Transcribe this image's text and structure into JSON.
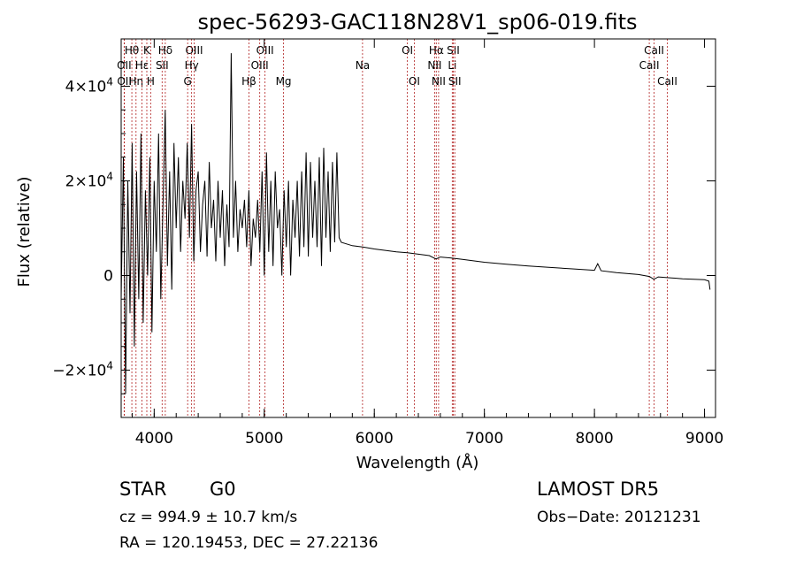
{
  "chart_data": {
    "type": "line",
    "title": "spec-56293-GAC118N28V1_sp06-019.fits",
    "xlabel": "Wavelength (Å)",
    "ylabel": "Flux (relative)",
    "xlim": [
      3700,
      9100
    ],
    "ylim": [
      -30000,
      50000
    ],
    "x_ticks": [
      4000,
      5000,
      6000,
      7000,
      8000,
      9000
    ],
    "y_ticks": [
      {
        "value": -20000,
        "base": "−2×10",
        "exp": "4"
      },
      {
        "value": 0,
        "base": "0",
        "exp": ""
      },
      {
        "value": 20000,
        "base": "2×10",
        "exp": "4"
      },
      {
        "value": 40000,
        "base": "4×10",
        "exp": "4"
      }
    ],
    "grid": false,
    "line_color": "#000000",
    "marker_color": "#b22222",
    "series": [
      {
        "x": [
          3700,
          3720,
          3740,
          3760,
          3780,
          3800,
          3820,
          3840,
          3860,
          3880,
          3900,
          3920,
          3940,
          3960,
          3980,
          4000,
          4020,
          4040,
          4060,
          4080,
          4100,
          4120,
          4140,
          4160,
          4180,
          4200,
          4220,
          4240,
          4260,
          4280,
          4300,
          4320,
          4340,
          4360,
          4380,
          4400,
          4420,
          4440,
          4460,
          4480,
          4500,
          4520,
          4540,
          4560,
          4580,
          4600,
          4620,
          4640,
          4660,
          4680,
          4700,
          4720,
          4740,
          4760,
          4780,
          4800,
          4820,
          4840,
          4860,
          4880,
          4900,
          4920,
          4940,
          4960,
          4980,
          5000,
          5020,
          5040,
          5060,
          5080,
          5100,
          5120,
          5140,
          5160,
          5180,
          5200,
          5220,
          5240,
          5260,
          5280,
          5300,
          5320,
          5340,
          5360,
          5380,
          5400,
          5420,
          5440,
          5460,
          5480,
          5500,
          5520,
          5540,
          5560,
          5580,
          5600,
          5620,
          5640,
          5660,
          5680,
          5700,
          5800,
          5900,
          6000,
          6100,
          6200,
          6300,
          6400,
          6500,
          6560,
          6600,
          6700,
          6800,
          6900,
          7000,
          7200,
          7400,
          7600,
          7800,
          8000,
          8030,
          8060,
          8200,
          8400,
          8500,
          8540,
          8580,
          8700,
          8800,
          8900,
          9000,
          9040,
          9050
        ],
        "values": [
          -5000,
          25000,
          -25000,
          20000,
          -8000,
          28000,
          -15000,
          22000,
          -5000,
          30000,
          -10000,
          18000,
          0,
          25000,
          -12000,
          20000,
          5000,
          30000,
          -5000,
          15000,
          35000,
          2000,
          22000,
          -3000,
          28000,
          10000,
          25000,
          5000,
          20000,
          12000,
          28000,
          8000,
          32000,
          3000,
          18000,
          22000,
          5000,
          15000,
          20000,
          4000,
          24000,
          10000,
          16000,
          3000,
          20000,
          8000,
          18000,
          2000,
          15000,
          6000,
          47000,
          8000,
          20000,
          5000,
          14000,
          10000,
          16000,
          6000,
          18000,
          2000,
          12000,
          8000,
          16000,
          5000,
          22000,
          0,
          26000,
          5000,
          20000,
          2000,
          22000,
          10000,
          14000,
          0,
          18000,
          6000,
          20000,
          0,
          16000,
          8000,
          20000,
          4000,
          22000,
          6000,
          26000,
          4000,
          24000,
          8000,
          20000,
          6000,
          25000,
          2000,
          27000,
          8000,
          22000,
          5000,
          24000,
          7000,
          26000,
          8000,
          7000,
          6300,
          6000,
          5600,
          5300,
          5000,
          4800,
          4500,
          4200,
          3500,
          3900,
          3700,
          3400,
          3100,
          2800,
          2400,
          2000,
          1700,
          1400,
          1100,
          2500,
          1000,
          600,
          200,
          -200,
          -800,
          -300,
          -500,
          -700,
          -800,
          -900,
          -1200,
          -3000
        ]
      }
    ],
    "lines": [
      {
        "name": "Hθ",
        "x": 3797,
        "row": 1
      },
      {
        "name": "OII",
        "x": 3727,
        "row": 2
      },
      {
        "name": "OII",
        "x": 3729,
        "row": 3
      },
      {
        "name": "Hη",
        "x": 3835,
        "row": 3
      },
      {
        "name": "K",
        "x": 3933,
        "row": 1
      },
      {
        "name": "Hε",
        "x": 3889,
        "row": 2
      },
      {
        "name": "H",
        "x": 3968,
        "row": 3
      },
      {
        "name": "Hδ",
        "x": 4101,
        "row": 1
      },
      {
        "name": "SII",
        "x": 4072,
        "row": 2
      },
      {
        "name": "OIII",
        "x": 4363,
        "row": 1
      },
      {
        "name": "Hγ",
        "x": 4340,
        "row": 2
      },
      {
        "name": "G",
        "x": 4304,
        "row": 3
      },
      {
        "name": "OIII",
        "x": 5007,
        "row": 1
      },
      {
        "name": "OIII",
        "x": 4959,
        "row": 2
      },
      {
        "name": "Hβ",
        "x": 4861,
        "row": 3
      },
      {
        "name": "Mg",
        "x": 5175,
        "row": 3
      },
      {
        "name": "Na",
        "x": 5893,
        "row": 2
      },
      {
        "name": "OI",
        "x": 6300,
        "row": 1
      },
      {
        "name": "OI",
        "x": 6363,
        "row": 3
      },
      {
        "name": "Hα",
        "x": 6563,
        "row": 1
      },
      {
        "name": "NII",
        "x": 6548,
        "row": 2
      },
      {
        "name": "NII",
        "x": 6584,
        "row": 3
      },
      {
        "name": "SII",
        "x": 6717,
        "row": 1
      },
      {
        "name": "Li",
        "x": 6708,
        "row": 2
      },
      {
        "name": "SII",
        "x": 6731,
        "row": 3
      },
      {
        "name": "CaII",
        "x": 8542,
        "row": 1
      },
      {
        "name": "CaII",
        "x": 8498,
        "row": 2
      },
      {
        "name": "CaII",
        "x": 8662,
        "row": 3
      }
    ]
  },
  "info": {
    "object_class": "STAR",
    "subclass": "G0",
    "survey": "LAMOST DR5",
    "cz": "cz = 994.9 ± 10.7 km/s",
    "obs_date": "Obs−Date: 20121231",
    "coords": "RA = 120.19453, DEC =  27.22136"
  }
}
